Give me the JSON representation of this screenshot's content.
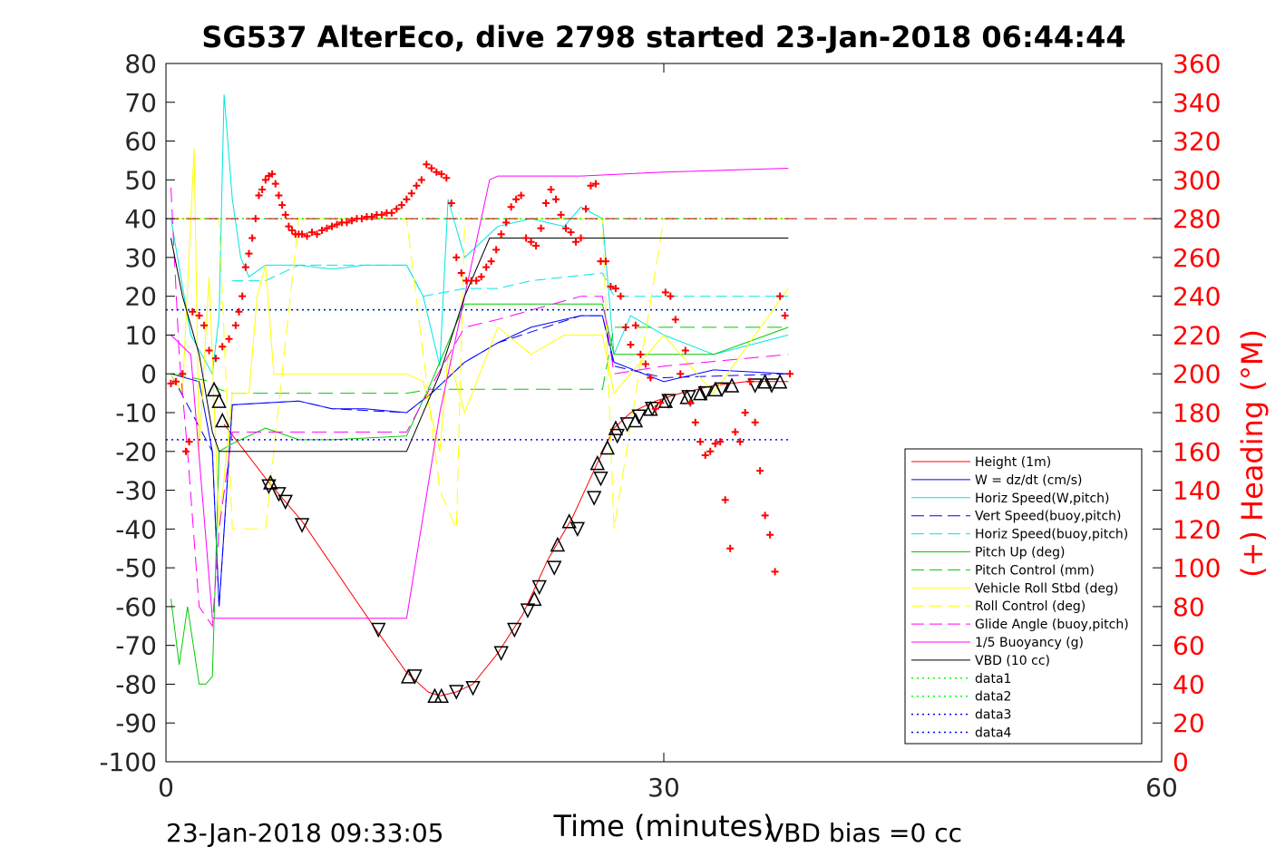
{
  "chart_data": {
    "type": "line",
    "title": "SG537 AlterEco, dive 2798 started 23-Jan-2018 06:44:44",
    "xlabel": "Time (minutes)",
    "ylabel": "",
    "y2label": "(+) Heading (°M)",
    "footer_left": "23-Jan-2018 09:33:05",
    "footer_right": "VBD bias =0 cc",
    "xlim": [
      0,
      60
    ],
    "ylim": [
      -100,
      80
    ],
    "y2lim": [
      0,
      360
    ],
    "x_ticks": [
      "0",
      "30",
      "60"
    ],
    "x_tick_values": [
      0,
      30,
      60
    ],
    "y_ticks": [
      "80",
      "70",
      "60",
      "50",
      "40",
      "30",
      "20",
      "10",
      "0",
      "-10",
      "-20",
      "-30",
      "-40",
      "-50",
      "-60",
      "-70",
      "-80",
      "-90",
      "-100"
    ],
    "y_tick_values": [
      80,
      70,
      60,
      50,
      40,
      30,
      20,
      10,
      0,
      -10,
      -20,
      -30,
      -40,
      -50,
      -60,
      -70,
      -80,
      -90,
      -100
    ],
    "y2_ticks": [
      "360",
      "340",
      "320",
      "300",
      "280",
      "260",
      "240",
      "220",
      "200",
      "180",
      "160",
      "140",
      "120",
      "100",
      "80",
      "60",
      "40",
      "20",
      "0"
    ],
    "y2_tick_values": [
      360,
      340,
      320,
      300,
      280,
      260,
      240,
      220,
      200,
      180,
      160,
      140,
      120,
      100,
      80,
      60,
      40,
      20,
      0
    ],
    "y2_color": "#ff0000",
    "grid": false,
    "legend_position": "bottom-right",
    "legend": [
      {
        "label": "Height (1m)",
        "color": "#ff0000",
        "style": "solid"
      },
      {
        "label": "W = dz/dt (cm/s)",
        "color": "#0000ff",
        "style": "solid"
      },
      {
        "label": "Horiz Speed(W,pitch)",
        "color": "#00e5e5",
        "style": "solid"
      },
      {
        "label": "Vert Speed(buoy,pitch)",
        "color": "#0000ff",
        "style": "dashed"
      },
      {
        "label": "Horiz Speed(buoy,pitch)",
        "color": "#00e5e5",
        "style": "dashed"
      },
      {
        "label": "Pitch Up (deg)",
        "color": "#00cc00",
        "style": "solid"
      },
      {
        "label": "Pitch Control (mm)",
        "color": "#00cc00",
        "style": "dashed"
      },
      {
        "label": "Vehicle Roll Stbd (deg)",
        "color": "#ffff00",
        "style": "solid"
      },
      {
        "label": "Roll Control (deg)",
        "color": "#ffff00",
        "style": "dashed"
      },
      {
        "label": "Glide Angle (buoy,pitch)",
        "color": "#ff00ff",
        "style": "dashed"
      },
      {
        "label": "1/5 Buoyancy (g)",
        "color": "#ff00ff",
        "style": "solid"
      },
      {
        "label": "VBD (10 cc)",
        "color": "#000000",
        "style": "solid"
      },
      {
        "label": "data1",
        "color": "#00ff00",
        "style": "dotted"
      },
      {
        "label": "data2",
        "color": "#00ff00",
        "style": "dotted"
      },
      {
        "label": "data3",
        "color": "#0000ff",
        "style": "dotted"
      },
      {
        "label": "data4",
        "color": "#0000ff",
        "style": "dotted"
      }
    ],
    "series": [
      {
        "name": "Height (1m)",
        "color": "#ff0000",
        "x": [
          3.5,
          6.2,
          8.2,
          12.5,
          14.5,
          15.8,
          16.5,
          17.5,
          18.5,
          20,
          21.5,
          23,
          24.5,
          26,
          27,
          28,
          29.5,
          31,
          33,
          35,
          37.5
        ],
        "y": [
          -13,
          -28,
          -38,
          -65,
          -77,
          -82,
          -83,
          -82,
          -80,
          -72,
          -62,
          -48,
          -37,
          -23,
          -14,
          -10,
          -7,
          -5,
          -3,
          -2,
          -2
        ]
      },
      {
        "name": "W = dz/dt (cm/s)",
        "color": "#0000ff",
        "x": [
          0.3,
          2,
          2.8,
          3.2,
          4,
          8,
          10,
          12,
          14.5,
          16,
          18,
          20,
          22,
          25,
          26.3,
          27,
          30,
          33,
          37.5
        ],
        "y": [
          0,
          -2,
          -20,
          -60,
          -8,
          -7,
          -9,
          -9,
          -10,
          -5,
          3,
          8,
          12,
          15,
          15,
          3,
          -2,
          1,
          0
        ]
      },
      {
        "name": "Horiz Speed(W,pitch)",
        "color": "#00e5e5",
        "x": [
          0.3,
          1.5,
          2.8,
          3.2,
          3.5,
          4,
          4.5,
          5,
          6,
          8,
          10,
          12,
          14.5,
          15.5,
          16.5,
          17,
          18,
          20,
          22,
          24,
          25,
          26.3,
          27,
          28,
          30,
          33,
          37.5
        ],
        "y": [
          40,
          10,
          0,
          15,
          72,
          45,
          30,
          25,
          28,
          28,
          27,
          28,
          28,
          20,
          2,
          45,
          30,
          38,
          40,
          38,
          43,
          40,
          5,
          15,
          10,
          5,
          10
        ]
      },
      {
        "name": "Vert Speed(buoy,pitch)",
        "color": "#0000ff",
        "dash": "12 6",
        "x": [
          0.3,
          2.8,
          3.2,
          4,
          8,
          10,
          14.5,
          16,
          18,
          20,
          25,
          26.3,
          27,
          30,
          37.5
        ],
        "y": [
          0,
          -20,
          -60,
          -8,
          -7,
          -9,
          -10,
          -5,
          3,
          8,
          15,
          15,
          2,
          -1,
          0
        ]
      },
      {
        "name": "Horiz Speed(buoy,pitch)",
        "color": "#00e5e5",
        "dash": "12 6",
        "x": [
          4,
          6,
          8,
          14.5,
          15.5,
          18,
          20,
          22,
          26.3,
          27,
          30,
          37.5
        ],
        "y": [
          24,
          24,
          28,
          28,
          20,
          22,
          22,
          24,
          26,
          20,
          20,
          20
        ]
      },
      {
        "name": "Pitch Up (deg)",
        "color": "#00cc00",
        "x": [
          0.3,
          0.8,
          1.3,
          2,
          2.4,
          2.8,
          3.2,
          4,
          6,
          8,
          10,
          14.5,
          16,
          18,
          20,
          22,
          26.3,
          27,
          30,
          33,
          37.5
        ],
        "y": [
          -58,
          -75,
          -60,
          -80,
          -80,
          -78,
          -20,
          -18,
          -14,
          -17,
          -17,
          -16,
          -2,
          18,
          18,
          18,
          18,
          5,
          5,
          5,
          12
        ]
      },
      {
        "name": "Pitch Control (mm)",
        "color": "#00cc00",
        "dash": "16 8",
        "x": [
          0.3,
          2.8,
          3.2,
          4,
          8,
          14.5,
          16,
          18,
          26.3,
          27,
          37.5
        ],
        "y": [
          0,
          -2,
          -4,
          -5,
          -5,
          -5,
          -4,
          -4,
          -4,
          12,
          12
        ]
      },
      {
        "name": "Vehicle Roll Stbd (deg)",
        "color": "#ffff00",
        "x": [
          0.3,
          1,
          1.7,
          2,
          2.6,
          3.2,
          4,
          5,
          5.5,
          6,
          6.5,
          8,
          10,
          14.5,
          15.5,
          16.5,
          17,
          18,
          20,
          22,
          24,
          26.3,
          27,
          30,
          33,
          37.5
        ],
        "y": [
          0,
          -5,
          58,
          -20,
          25,
          -40,
          -5,
          -5,
          20,
          28,
          0,
          0,
          0,
          0,
          -2,
          -20,
          5,
          -10,
          12,
          5,
          10,
          10,
          -5,
          10,
          -5,
          22
        ]
      },
      {
        "name": "Roll Control (deg)",
        "color": "#ffff00",
        "dash": "16 8",
        "x": [
          0.3,
          3.2,
          4,
          6,
          8,
          10,
          14.5,
          16.5,
          17.5,
          18,
          20,
          22,
          26.3,
          27,
          30,
          37.5
        ],
        "y": [
          40,
          40,
          -40,
          -40,
          40,
          40,
          40,
          -30,
          -40,
          40,
          40,
          40,
          40,
          -40,
          40,
          40
        ]
      },
      {
        "name": "Glide Angle (buoy,pitch)",
        "color": "#ff00ff",
        "dash": "16 8",
        "x": [
          0.3,
          0.8,
          1.3,
          2,
          2.8,
          3.2,
          4,
          8,
          14.5,
          16,
          18,
          20,
          25,
          26.3,
          27,
          30,
          37.5
        ],
        "y": [
          48,
          5,
          -20,
          -60,
          -65,
          -40,
          -15,
          -15,
          -15,
          -3,
          12,
          14,
          20,
          20,
          0,
          2,
          5
        ]
      },
      {
        "name": "1/5 Buoyancy (g)",
        "color": "#ff00ff",
        "x": [
          0.3,
          1.5,
          2.8,
          3.2,
          4,
          8,
          14.5,
          16.5,
          18,
          19.5,
          20,
          25,
          30,
          37.5
        ],
        "y": [
          10,
          5,
          -63,
          -63,
          -63,
          -63,
          -63,
          -10,
          20,
          50,
          51,
          51,
          52,
          53
        ]
      },
      {
        "name": "VBD (10 cc)",
        "color": "#000000",
        "x": [
          0.3,
          1,
          2,
          2.8,
          3.2,
          4,
          8,
          14.5,
          16.5,
          18,
          19.5,
          20,
          25,
          30,
          37.5
        ],
        "y": [
          35,
          20,
          5,
          -15,
          -20,
          -20,
          -20,
          -20,
          0,
          20,
          35,
          35,
          35,
          35,
          35
        ]
      },
      {
        "name": "data1",
        "color": "#00ff00",
        "dash": "2 4",
        "x": [
          0,
          37.5
        ],
        "y": [
          40,
          40
        ]
      },
      {
        "name": "data2",
        "color": "#00ff00",
        "dash": "2 4",
        "x": [
          0,
          37.5
        ],
        "y": [
          16.5,
          16.5
        ]
      },
      {
        "name": "data3",
        "color": "#0000ff",
        "dash": "2 4",
        "x": [
          0,
          37.5
        ],
        "y": [
          16.5,
          16.5
        ]
      },
      {
        "name": "data4",
        "color": "#0000ff",
        "dash": "2 4",
        "x": [
          0,
          37.5
        ],
        "y": [
          -17,
          -17
        ]
      }
    ],
    "heading_reference": {
      "value": 280,
      "color": "#c00000"
    },
    "height_markers": {
      "down_triangles": {
        "x": [
          6.2,
          6.8,
          7.2,
          8.2,
          12.8,
          15,
          17.5,
          18.5,
          20.2,
          21,
          21.8,
          22.5,
          23.4,
          24.8,
          25.8,
          26.2,
          27.2,
          27.8,
          28.5,
          29.3,
          30.3,
          31.5,
          32.5,
          33.5,
          35.5,
          36.5
        ],
        "y": [
          -29,
          -31,
          -33,
          -39,
          -66,
          -78,
          -82,
          -81,
          -72,
          -66,
          -61,
          -55,
          -50,
          -40,
          -32,
          -27,
          -16,
          -13,
          -11,
          -9,
          -7,
          -6,
          -5,
          -4,
          -3,
          -3
        ]
      },
      "up_triangles": {
        "x": [
          2.9,
          3.2,
          3.4,
          6.3,
          14.6,
          16.2,
          16.6,
          22.2,
          23.6,
          24.3,
          26.0,
          26.6,
          27.1,
          28.3,
          29.2,
          30.1,
          31.4,
          32.2,
          33.1,
          34.1,
          36.1,
          37.0
        ],
        "y": [
          -4,
          -7,
          -12,
          -28,
          -78,
          -83,
          -83,
          -58,
          -44,
          -38,
          -23,
          -19,
          -14,
          -12,
          -9,
          -7,
          -6,
          -5,
          -4,
          -3,
          -2,
          -2
        ]
      }
    },
    "heading_points": {
      "x": [
        0.3,
        0.6,
        1.0,
        1.2,
        1.4,
        1.6,
        2.0,
        2.3,
        2.6,
        3.0,
        3.4,
        3.8,
        4.2,
        4.4,
        4.6,
        4.8,
        5.0,
        5.2,
        5.4,
        5.6,
        5.8,
        6.0,
        6.2,
        6.4,
        6.6,
        6.8,
        7.0,
        7.2,
        7.4,
        7.6,
        7.8,
        8.0,
        8.2,
        8.5,
        8.8,
        9.1,
        9.4,
        9.7,
        10.0,
        10.3,
        10.6,
        10.9,
        11.2,
        11.5,
        11.8,
        12.1,
        12.4,
        12.7,
        13.0,
        13.3,
        13.6,
        13.9,
        14.2,
        14.5,
        14.8,
        15.1,
        15.4,
        15.7,
        16.0,
        16.3,
        16.6,
        16.9,
        17.2,
        17.5,
        17.8,
        18.1,
        18.4,
        18.7,
        19.0,
        19.3,
        19.6,
        19.9,
        20.2,
        20.5,
        20.8,
        21.1,
        21.4,
        21.7,
        22.0,
        22.3,
        22.6,
        22.9,
        23.2,
        23.5,
        23.8,
        24.1,
        24.4,
        24.7,
        25.0,
        25.3,
        25.6,
        25.9,
        26.2,
        26.5,
        26.8,
        27.1,
        27.4,
        27.7,
        28.0,
        28.3,
        28.6,
        28.9,
        29.2,
        29.5,
        29.8,
        30.1,
        30.4,
        30.7,
        31.0,
        31.3,
        31.6,
        31.9,
        32.2,
        32.5,
        32.8,
        33.1,
        33.4,
        33.7,
        34.0,
        34.3,
        34.6,
        34.9,
        35.2,
        35.5,
        35.8,
        36.1,
        36.4,
        36.7,
        37.0,
        37.3,
        37.6
      ],
      "y": [
        195,
        196,
        200,
        160,
        165,
        232,
        230,
        225,
        212,
        208,
        214,
        218,
        225,
        232,
        240,
        255,
        262,
        270,
        280,
        292,
        295,
        300,
        302,
        303,
        298,
        292,
        287,
        282,
        276,
        274,
        272,
        272,
        272,
        271,
        273,
        272,
        274,
        275,
        276,
        277,
        278,
        278,
        279,
        280,
        280,
        281,
        281,
        282,
        282,
        283,
        283,
        285,
        287,
        290,
        293,
        297,
        300,
        308,
        306,
        304,
        303,
        301,
        288,
        260,
        252,
        248,
        248,
        248,
        250,
        255,
        258,
        264,
        272,
        278,
        286,
        290,
        292,
        270,
        268,
        266,
        275,
        288,
        295,
        290,
        282,
        275,
        273,
        268,
        270,
        285,
        297,
        298,
        258,
        258,
        245,
        244,
        240,
        224,
        215,
        225,
        210,
        205,
        198,
        182,
        185,
        242,
        240,
        228,
        200,
        212,
        185,
        175,
        165,
        158,
        160,
        164,
        165,
        135,
        110,
        170,
        165,
        180,
        196,
        175,
        150,
        127,
        117,
        98,
        240,
        230,
        200
      ]
    }
  }
}
